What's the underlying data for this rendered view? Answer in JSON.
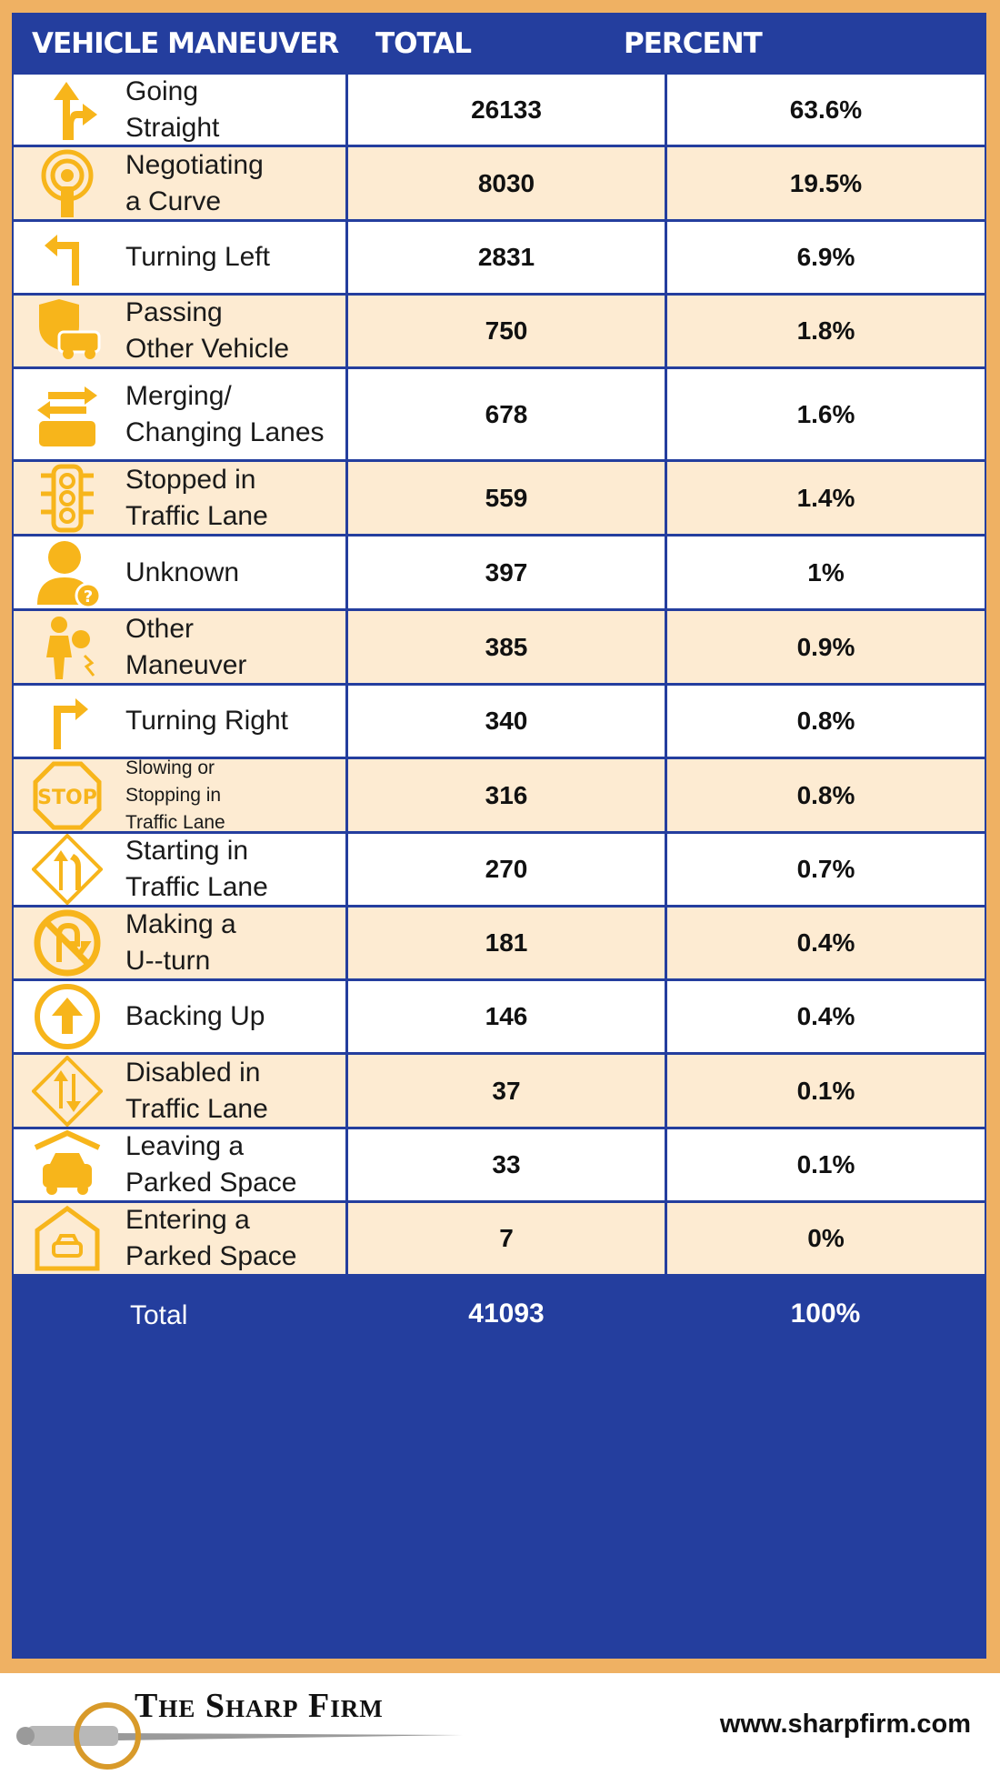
{
  "chart_data": {
    "type": "table",
    "columns": [
      "VEHICLE MANEUVER",
      "TOTAL",
      "PERCENT"
    ],
    "rows": [
      {
        "label": [
          "Going",
          "Straight"
        ],
        "icon": "road-fork-arrow-icon",
        "total": "26133",
        "percent": "63.6%"
      },
      {
        "label": [
          "Negotiating",
          "a Curve"
        ],
        "icon": "broadcast-info-icon",
        "total": "8030",
        "percent": "19.5%"
      },
      {
        "label": [
          "Turning Left"
        ],
        "icon": "turn-left-arrow-icon",
        "total": "2831",
        "percent": "6.9%"
      },
      {
        "label": [
          "Passing",
          "Other Vehicle"
        ],
        "icon": "shield-car-icon",
        "total": "750",
        "percent": "1.8%"
      },
      {
        "label": [
          "Merging/",
          "Changing Lanes"
        ],
        "icon": "car-swap-arrows-icon",
        "total": "678",
        "percent": "1.6%"
      },
      {
        "label": [
          "Stopped in",
          "Traffic Lane"
        ],
        "icon": "traffic-light-icon",
        "total": "559",
        "percent": "1.4%"
      },
      {
        "label": [
          "Unknown"
        ],
        "icon": "person-question-icon",
        "total": "397",
        "percent": "1%"
      },
      {
        "label": [
          "Other",
          "Maneuver"
        ],
        "icon": "person-figure-icon",
        "total": "385",
        "percent": "0.9%"
      },
      {
        "label": [
          "Turning Right"
        ],
        "icon": "turn-right-arrow-icon",
        "total": "340",
        "percent": "0.8%"
      },
      {
        "label": [
          "Slowing or",
          "Stopping in",
          "Traffic Lane"
        ],
        "icon": "stop-sign-icon",
        "total": "316",
        "percent": "0.8%"
      },
      {
        "label": [
          "Starting in",
          "Traffic Lane"
        ],
        "icon": "merge-sign-icon",
        "total": "270",
        "percent": "0.7%"
      },
      {
        "label": [
          "Making a",
          "U--turn"
        ],
        "icon": "no-u-turn-icon",
        "total": "181",
        "percent": "0.4%"
      },
      {
        "label": [
          "Backing Up"
        ],
        "icon": "up-arrow-circle-icon",
        "total": "146",
        "percent": "0.4%"
      },
      {
        "label": [
          "Disabled in",
          "Traffic Lane"
        ],
        "icon": "two-way-sign-icon",
        "total": "37",
        "percent": "0.1%"
      },
      {
        "label": [
          "Leaving a",
          "Parked Space"
        ],
        "icon": "car-under-roof-icon",
        "total": "33",
        "percent": "0.1%"
      },
      {
        "label": [
          "Entering a",
          "Parked Space"
        ],
        "icon": "garage-car-icon",
        "total": "7",
        "percent": "0%"
      }
    ],
    "total": {
      "label": "Total",
      "total": "41093",
      "percent": "100%"
    }
  },
  "footer": {
    "brand": "The Sharp Firm",
    "url": "www.sharpfirm.com"
  },
  "colors": {
    "header_blue": "#243e9e",
    "frame_orange": "#efb163",
    "alt_row": "#fdebd2",
    "icon_yellow": "#f7b51b"
  }
}
